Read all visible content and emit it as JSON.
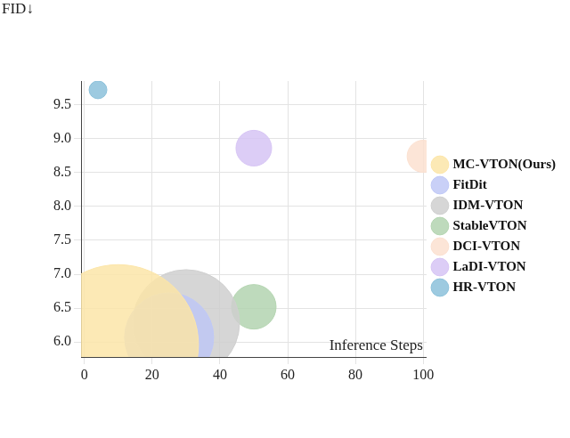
{
  "chart_data": {
    "type": "bubble",
    "x_label": "Inference Steps",
    "y_label": "FID↓",
    "xlim": [
      -1,
      101
    ],
    "xticks": [
      0,
      20,
      40,
      60,
      80,
      100
    ],
    "ylim": [
      5.78,
      9.85
    ],
    "yticks": [
      {
        "value": 6,
        "label": "6.0"
      },
      {
        "value": 6.5,
        "label": "6.5"
      },
      {
        "value": 7,
        "label": "7.0"
      },
      {
        "value": 7.5,
        "label": "7.5"
      },
      {
        "value": 8,
        "label": "8.0"
      },
      {
        "value": 8.5,
        "label": "8.5"
      },
      {
        "value": 9,
        "label": "9.0"
      },
      {
        "value": 9.5,
        "label": "9.5"
      }
    ],
    "grid": true,
    "legend": "right",
    "series": [
      {
        "name": "MC-VTON(Ours)",
        "color": "#fce5a8",
        "x": [
          10
        ],
        "values": [
          5.96
        ],
        "size": [
          90
        ]
      },
      {
        "name": "FitDit",
        "color": "#bfc8f6",
        "x": [
          25
        ],
        "values": [
          6.07
        ],
        "size": [
          50
        ]
      },
      {
        "name": "IDM-VTON",
        "color": "#cfcfcf",
        "x": [
          30
        ],
        "values": [
          6.28
        ],
        "size": [
          60
        ]
      },
      {
        "name": "StableVTON",
        "color": "#b3d4b0",
        "x": [
          50
        ],
        "values": [
          6.52
        ],
        "size": [
          25
        ]
      },
      {
        "name": "DCI-VTON",
        "color": "#fbe0d0",
        "x": [
          100
        ],
        "values": [
          8.74
        ],
        "size": [
          18
        ]
      },
      {
        "name": "LaDI-VTON",
        "color": "#d6c4f4",
        "x": [
          50
        ],
        "values": [
          8.86
        ],
        "size": [
          20
        ]
      },
      {
        "name": "HR-VTON",
        "color": "#8cc1da",
        "x": [
          4
        ],
        "values": [
          9.72
        ],
        "size": [
          10
        ]
      }
    ]
  }
}
